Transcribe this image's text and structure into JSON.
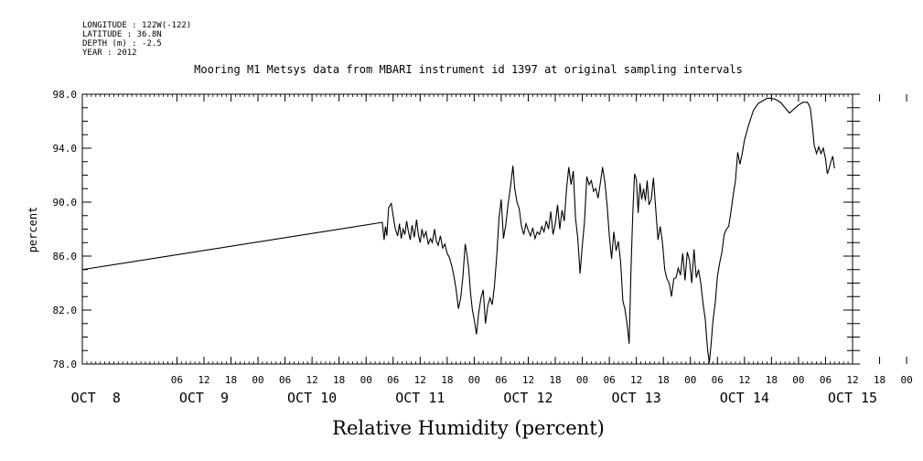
{
  "header": {
    "meta_lines": [
      "LONGITUDE : 122W(-122)",
      "LATITUDE : 36.8N",
      "DEPTH (m) : -2.5",
      "YEAR : 2012"
    ]
  },
  "chart_data": {
    "type": "line",
    "title": "Mooring M1 Metsys data from MBARI instrument id 1397 at original sampling intervals",
    "xlabel": "Relative Humidity (percent)",
    "ylabel": "percent",
    "ylim": [
      78.0,
      98.0
    ],
    "xlim": [
      "2012-10-08T00:00",
      "2012-10-15T00:00"
    ],
    "y_ticks": [
      "78.0",
      "82.0",
      "86.0",
      "90.0",
      "94.0",
      "98.0"
    ],
    "x_hour_ticks": [
      "06",
      "12",
      "18",
      "00",
      "06",
      "12",
      "18",
      "00",
      "06",
      "12",
      "18",
      "00",
      "06",
      "12",
      "18",
      "00",
      "06",
      "12",
      "18",
      "00",
      "06",
      "12",
      "18",
      "00",
      "06",
      "12",
      "18",
      "00"
    ],
    "x_hour_ticks_hours": [
      -6,
      0,
      6,
      12,
      18,
      24,
      30,
      36,
      42,
      48,
      54,
      60,
      66,
      72,
      78,
      84,
      90,
      96,
      102,
      108,
      114,
      120,
      126,
      132,
      138,
      144,
      150,
      156
    ],
    "x_day_labels": [
      "OCT  8",
      "OCT  9",
      "OCT 10",
      "OCT 11",
      "OCT 12",
      "OCT 13",
      "OCT 14",
      "OCT 15"
    ],
    "x_day_label_hours": [
      -24,
      0,
      24,
      48,
      72,
      96,
      120,
      144
    ],
    "x_unit": "hours since 2012-10-09T00:00",
    "grid": false,
    "legend": "none",
    "line_color": "#000000",
    "series": [
      {
        "name": "",
        "points": [
          [
            -27,
            85.0
          ],
          [
            39.6,
            88.5
          ],
          [
            40.0,
            87.2
          ],
          [
            40.3,
            88.2
          ],
          [
            40.6,
            87.5
          ],
          [
            41.0,
            89.6
          ],
          [
            41.6,
            89.9
          ],
          [
            42.0,
            89.0
          ],
          [
            42.5,
            88.0
          ],
          [
            43.0,
            87.5
          ],
          [
            43.4,
            88.4
          ],
          [
            43.8,
            87.3
          ],
          [
            44.2,
            88.0
          ],
          [
            44.6,
            87.6
          ],
          [
            45.0,
            88.6
          ],
          [
            45.4,
            87.8
          ],
          [
            45.8,
            87.2
          ],
          [
            46.2,
            88.3
          ],
          [
            46.7,
            87.4
          ],
          [
            47.2,
            88.7
          ],
          [
            47.6,
            87.6
          ],
          [
            48.0,
            87.0
          ],
          [
            48.4,
            88.0
          ],
          [
            48.8,
            87.4
          ],
          [
            49.3,
            87.8
          ],
          [
            49.8,
            86.9
          ],
          [
            50.3,
            87.3
          ],
          [
            50.7,
            87.0
          ],
          [
            51.2,
            88.0
          ],
          [
            51.6,
            87.1
          ],
          [
            52.0,
            86.8
          ],
          [
            52.5,
            87.5
          ],
          [
            53.0,
            86.6
          ],
          [
            53.5,
            86.9
          ],
          [
            54.0,
            86.2
          ],
          [
            54.5,
            85.9
          ],
          [
            55.0,
            85.3
          ],
          [
            55.5,
            84.5
          ],
          [
            56.0,
            83.5
          ],
          [
            56.5,
            82.1
          ],
          [
            57.0,
            82.9
          ],
          [
            57.5,
            84.5
          ],
          [
            58.0,
            86.9
          ],
          [
            58.4,
            86.1
          ],
          [
            58.8,
            85.0
          ],
          [
            59.2,
            83.2
          ],
          [
            59.6,
            82.0
          ],
          [
            60.0,
            81.3
          ],
          [
            60.5,
            80.2
          ],
          [
            61.0,
            81.8
          ],
          [
            61.5,
            82.9
          ],
          [
            62.0,
            83.5
          ],
          [
            62.5,
            81.0
          ],
          [
            63.0,
            82.3
          ],
          [
            63.5,
            82.9
          ],
          [
            64.0,
            82.4
          ],
          [
            64.5,
            83.8
          ],
          [
            65.0,
            86.0
          ],
          [
            65.5,
            88.8
          ],
          [
            66.0,
            90.2
          ],
          [
            66.5,
            87.3
          ],
          [
            67.0,
            88.3
          ],
          [
            67.5,
            89.8
          ],
          [
            68.0,
            91.0
          ],
          [
            68.6,
            92.7
          ],
          [
            69.0,
            91.0
          ],
          [
            69.5,
            90.0
          ],
          [
            70.0,
            89.5
          ],
          [
            70.5,
            88.2
          ],
          [
            71.0,
            87.6
          ],
          [
            71.5,
            88.4
          ],
          [
            72.0,
            87.9
          ],
          [
            72.5,
            87.5
          ],
          [
            73.0,
            88.1
          ],
          [
            73.5,
            87.3
          ],
          [
            74.0,
            87.8
          ],
          [
            74.5,
            87.6
          ],
          [
            75.0,
            88.2
          ],
          [
            75.5,
            87.8
          ],
          [
            76.0,
            88.6
          ],
          [
            76.5,
            88.0
          ],
          [
            77.0,
            89.3
          ],
          [
            77.5,
            87.6
          ],
          [
            78.0,
            88.4
          ],
          [
            78.5,
            89.8
          ],
          [
            79.0,
            88.0
          ],
          [
            79.5,
            89.4
          ],
          [
            80.0,
            88.6
          ],
          [
            80.5,
            91.0
          ],
          [
            81.0,
            92.6
          ],
          [
            81.5,
            91.3
          ],
          [
            82.0,
            92.3
          ],
          [
            82.5,
            88.8
          ],
          [
            83.0,
            87.3
          ],
          [
            83.5,
            84.7
          ],
          [
            84.0,
            86.8
          ],
          [
            84.5,
            88.6
          ],
          [
            85.0,
            91.9
          ],
          [
            85.5,
            91.3
          ],
          [
            86.0,
            91.6
          ],
          [
            86.5,
            90.8
          ],
          [
            87.0,
            91.0
          ],
          [
            87.5,
            90.3
          ],
          [
            88.0,
            91.4
          ],
          [
            88.5,
            92.6
          ],
          [
            89.0,
            91.5
          ],
          [
            89.5,
            89.8
          ],
          [
            90.0,
            87.5
          ],
          [
            90.5,
            85.8
          ],
          [
            91.0,
            87.8
          ],
          [
            91.5,
            86.4
          ],
          [
            92.0,
            87.1
          ],
          [
            92.5,
            85.6
          ],
          [
            93.0,
            82.7
          ],
          [
            93.5,
            82.0
          ],
          [
            94.0,
            80.8
          ],
          [
            94.4,
            79.5
          ],
          [
            94.8,
            84.9
          ],
          [
            95.2,
            89.1
          ],
          [
            95.6,
            92.1
          ],
          [
            96.0,
            91.7
          ],
          [
            96.4,
            89.2
          ],
          [
            96.8,
            91.4
          ],
          [
            97.2,
            90.2
          ],
          [
            97.6,
            91.0
          ],
          [
            98.0,
            90.1
          ],
          [
            98.4,
            91.6
          ],
          [
            98.8,
            89.8
          ],
          [
            99.3,
            90.2
          ],
          [
            99.8,
            91.8
          ],
          [
            100.3,
            89.5
          ],
          [
            100.8,
            87.2
          ],
          [
            101.3,
            88.2
          ],
          [
            101.8,
            87.0
          ],
          [
            102.3,
            85.0
          ],
          [
            102.8,
            84.3
          ],
          [
            103.3,
            84.0
          ],
          [
            103.8,
            83.0
          ],
          [
            104.3,
            84.3
          ],
          [
            104.8,
            84.4
          ],
          [
            105.3,
            85.1
          ],
          [
            105.8,
            84.6
          ],
          [
            106.3,
            86.2
          ],
          [
            106.8,
            84.2
          ],
          [
            107.3,
            86.3
          ],
          [
            107.8,
            85.7
          ],
          [
            108.3,
            84.0
          ],
          [
            108.8,
            86.5
          ],
          [
            109.3,
            84.4
          ],
          [
            109.8,
            85.0
          ],
          [
            110.3,
            84.0
          ],
          [
            110.8,
            82.5
          ],
          [
            111.3,
            81.3
          ],
          [
            111.8,
            79.1
          ],
          [
            112.2,
            78.1
          ],
          [
            112.6,
            79.5
          ],
          [
            113.0,
            81.2
          ],
          [
            113.5,
            82.5
          ],
          [
            114.0,
            84.5
          ],
          [
            114.5,
            85.5
          ],
          [
            115.0,
            86.3
          ],
          [
            115.5,
            87.6
          ],
          [
            116.0,
            88.0
          ],
          [
            116.5,
            88.2
          ],
          [
            117.0,
            89.3
          ],
          [
            117.5,
            90.5
          ],
          [
            118.0,
            91.6
          ],
          [
            118.5,
            93.7
          ],
          [
            119.0,
            92.8
          ],
          [
            119.5,
            93.6
          ],
          [
            120.0,
            94.6
          ],
          [
            121.0,
            95.8
          ],
          [
            122.0,
            96.8
          ],
          [
            123.0,
            97.3
          ],
          [
            124.0,
            97.5
          ],
          [
            125.0,
            97.7
          ],
          [
            126.0,
            97.7
          ],
          [
            127.0,
            97.6
          ],
          [
            128.0,
            97.4
          ],
          [
            129.0,
            97.0
          ],
          [
            130.0,
            96.6
          ],
          [
            131.0,
            96.9
          ],
          [
            132.0,
            97.2
          ],
          [
            133.0,
            97.4
          ],
          [
            134.0,
            97.4
          ],
          [
            134.6,
            97.0
          ],
          [
            135.0,
            95.9
          ],
          [
            135.5,
            94.2
          ],
          [
            136.0,
            93.6
          ],
          [
            136.5,
            94.1
          ],
          [
            137.0,
            93.6
          ],
          [
            137.5,
            94.0
          ],
          [
            138.0,
            93.2
          ],
          [
            138.4,
            92.1
          ],
          [
            138.8,
            92.5
          ],
          [
            139.2,
            93.0
          ],
          [
            139.6,
            93.4
          ],
          [
            140.0,
            92.5
          ]
        ]
      }
    ]
  }
}
